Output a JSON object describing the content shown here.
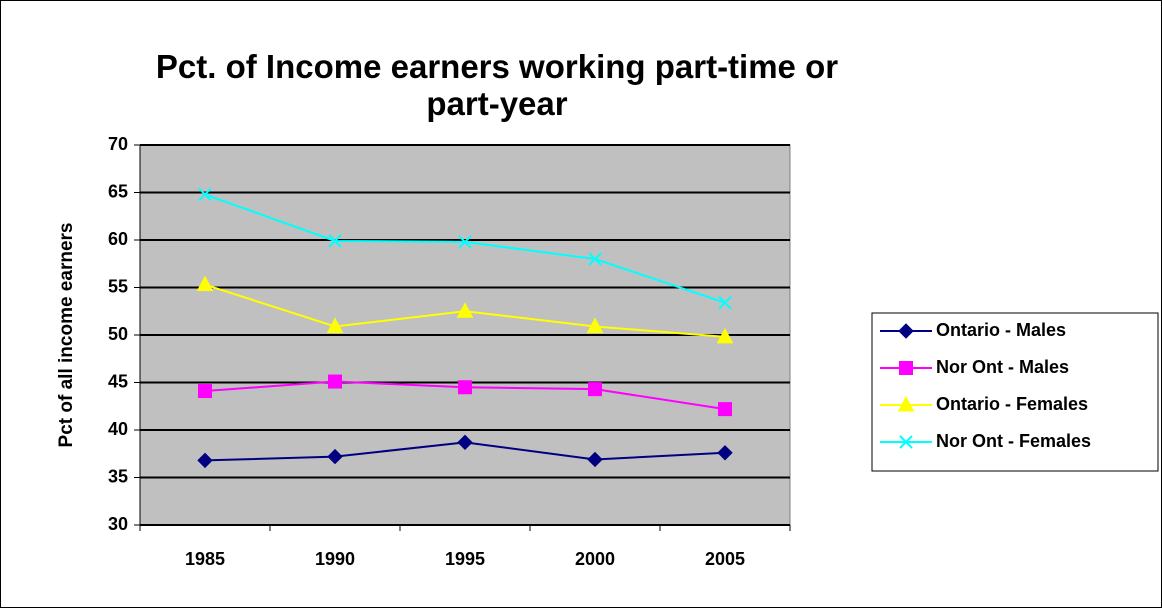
{
  "chart_data": {
    "type": "line",
    "title": "Pct. of Income earners working part-time or part-year",
    "ylabel": "Pct of all income earners",
    "categories": [
      "1985",
      "1990",
      "1995",
      "2000",
      "2005"
    ],
    "series": [
      {
        "name": "Ontario - Males",
        "color": "#000080",
        "marker": "diamond",
        "values": [
          36.8,
          37.2,
          38.7,
          36.9,
          37.6
        ]
      },
      {
        "name": "Nor Ont - Males",
        "color": "#ff00ff",
        "marker": "square",
        "values": [
          44.1,
          45.1,
          44.5,
          44.3,
          42.2
        ]
      },
      {
        "name": "Ontario - Females",
        "color": "#ffff00",
        "marker": "triangle",
        "values": [
          55.3,
          50.9,
          52.5,
          50.9,
          49.8
        ]
      },
      {
        "name": "Nor Ont - Females",
        "color": "#00ffff",
        "marker": "x",
        "values": [
          64.8,
          59.9,
          59.8,
          58.0,
          53.4
        ]
      }
    ],
    "ylim": [
      30,
      70
    ],
    "yticks": [
      30,
      35,
      40,
      45,
      50,
      55,
      60,
      65,
      70
    ],
    "grid": true,
    "legend": "right",
    "plot_background": "#c0c0c0"
  }
}
